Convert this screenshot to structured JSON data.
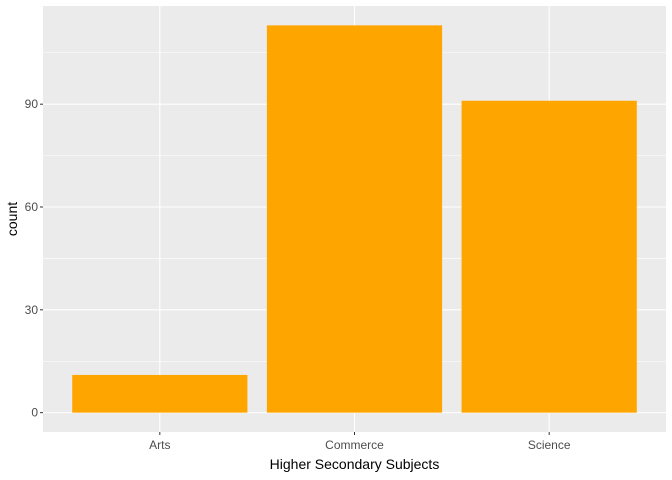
{
  "chart_data": {
    "type": "bar",
    "categories": [
      "Arts",
      "Commerce",
      "Science"
    ],
    "values": [
      11,
      113,
      91
    ],
    "title": "",
    "xlabel": "Higher Secondary Subjects",
    "ylabel": "count",
    "ylim": [
      -5.65,
      118.65
    ],
    "yticks": [
      0,
      30,
      60,
      90
    ],
    "grid": true,
    "legend": "none",
    "colors": {
      "bar": "#FFA500",
      "panel": "#EBEBEB",
      "grid_major": "#FFFFFF",
      "tick_text": "#4D4D4D",
      "tick_mark": "#333333"
    }
  }
}
